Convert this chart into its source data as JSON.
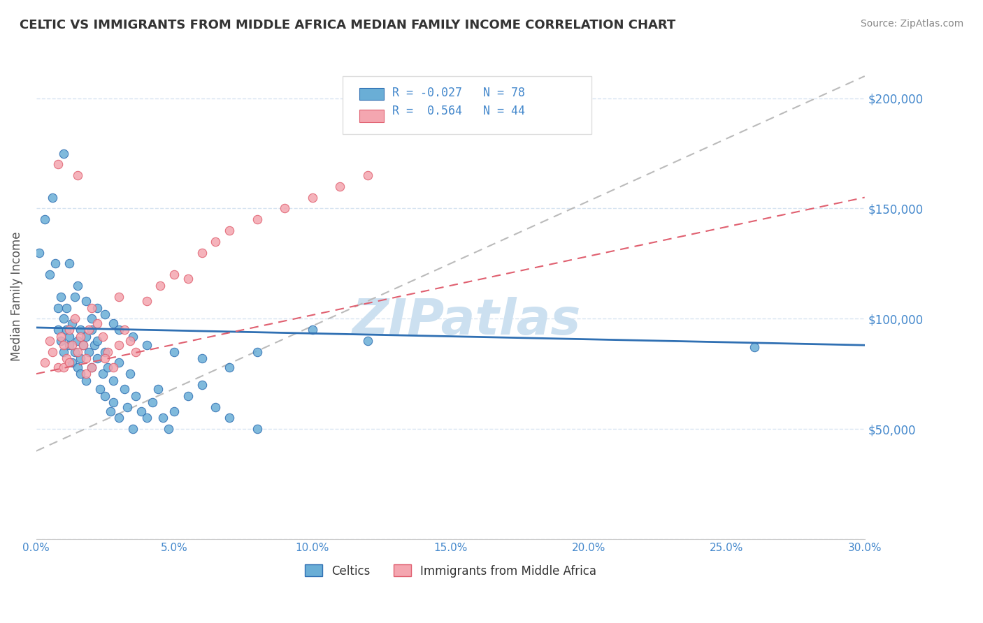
{
  "title": "CELTIC VS IMMIGRANTS FROM MIDDLE AFRICA MEDIAN FAMILY INCOME CORRELATION CHART",
  "source": "Source: ZipAtlas.com",
  "xlabel": "",
  "ylabel": "Median Family Income",
  "xlim": [
    0.0,
    0.3
  ],
  "ylim": [
    0,
    220000
  ],
  "yticks": [
    0,
    50000,
    100000,
    150000,
    200000
  ],
  "ytick_labels": [
    "",
    "$50,000",
    "$100,000",
    "$150,000",
    "$200,000"
  ],
  "xtick_labels": [
    "0.0%",
    "5.0%",
    "10.0%",
    "15.0%",
    "20.0%",
    "25.0%",
    "30.0%"
  ],
  "xticks": [
    0.0,
    0.05,
    0.1,
    0.15,
    0.2,
    0.25,
    0.3
  ],
  "legend_labels": [
    "Celtics",
    "Immigrants from Middle Africa"
  ],
  "R_celtic": -0.027,
  "N_celtic": 78,
  "R_immigrant": 0.564,
  "N_immigrant": 44,
  "color_celtic": "#6aaed6",
  "color_immigrant": "#f4a6b0",
  "color_celtic_line": "#3070b3",
  "color_immigrant_line": "#e06070",
  "color_diagonal": "#bbbbbb",
  "watermark": "ZIPatlas",
  "watermark_color": "#cce0f0",
  "title_color": "#333333",
  "axis_color": "#4488cc",
  "celtic_x": [
    0.001,
    0.003,
    0.005,
    0.006,
    0.007,
    0.008,
    0.008,
    0.009,
    0.009,
    0.01,
    0.01,
    0.011,
    0.011,
    0.012,
    0.012,
    0.013,
    0.013,
    0.014,
    0.014,
    0.015,
    0.015,
    0.016,
    0.016,
    0.016,
    0.017,
    0.018,
    0.018,
    0.019,
    0.02,
    0.02,
    0.021,
    0.022,
    0.022,
    0.023,
    0.024,
    0.025,
    0.025,
    0.026,
    0.027,
    0.028,
    0.028,
    0.03,
    0.03,
    0.032,
    0.033,
    0.034,
    0.035,
    0.036,
    0.038,
    0.04,
    0.042,
    0.044,
    0.046,
    0.048,
    0.05,
    0.055,
    0.06,
    0.065,
    0.07,
    0.08,
    0.02,
    0.022,
    0.025,
    0.028,
    0.03,
    0.035,
    0.01,
    0.012,
    0.015,
    0.018,
    0.04,
    0.05,
    0.06,
    0.07,
    0.08,
    0.1,
    0.12,
    0.26
  ],
  "celtic_y": [
    130000,
    145000,
    120000,
    155000,
    125000,
    105000,
    95000,
    110000,
    90000,
    85000,
    100000,
    95000,
    105000,
    88000,
    92000,
    80000,
    98000,
    85000,
    110000,
    78000,
    90000,
    82000,
    95000,
    75000,
    88000,
    92000,
    72000,
    85000,
    95000,
    78000,
    88000,
    82000,
    90000,
    68000,
    75000,
    85000,
    65000,
    78000,
    58000,
    72000,
    62000,
    80000,
    55000,
    68000,
    60000,
    75000,
    50000,
    65000,
    58000,
    55000,
    62000,
    68000,
    55000,
    50000,
    58000,
    65000,
    70000,
    60000,
    55000,
    50000,
    100000,
    105000,
    102000,
    98000,
    95000,
    92000,
    175000,
    125000,
    115000,
    108000,
    88000,
    85000,
    82000,
    78000,
    85000,
    95000,
    90000,
    87000
  ],
  "immigrant_x": [
    0.003,
    0.005,
    0.006,
    0.008,
    0.009,
    0.01,
    0.011,
    0.012,
    0.013,
    0.014,
    0.015,
    0.016,
    0.017,
    0.018,
    0.019,
    0.02,
    0.022,
    0.024,
    0.026,
    0.028,
    0.03,
    0.032,
    0.034,
    0.036,
    0.04,
    0.045,
    0.05,
    0.055,
    0.06,
    0.065,
    0.07,
    0.08,
    0.09,
    0.1,
    0.11,
    0.12,
    0.008,
    0.01,
    0.012,
    0.015,
    0.018,
    0.02,
    0.025,
    0.03
  ],
  "immigrant_y": [
    80000,
    90000,
    85000,
    78000,
    92000,
    88000,
    82000,
    95000,
    88000,
    100000,
    85000,
    92000,
    88000,
    82000,
    95000,
    105000,
    98000,
    92000,
    85000,
    78000,
    110000,
    95000,
    90000,
    85000,
    108000,
    115000,
    120000,
    118000,
    130000,
    135000,
    140000,
    145000,
    150000,
    155000,
    160000,
    165000,
    170000,
    78000,
    80000,
    165000,
    75000,
    78000,
    82000,
    88000
  ]
}
